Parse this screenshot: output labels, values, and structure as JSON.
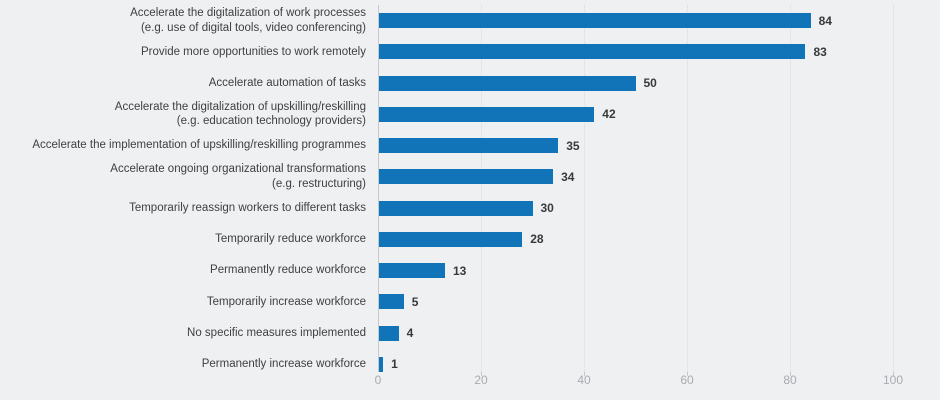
{
  "chart_data": {
    "type": "bar",
    "orientation": "horizontal",
    "title": "",
    "categories": [
      "Accelerate the digitalization of work processes\n(e.g. use of digital tools, video conferencing)",
      "Provide more opportunities to work remotely",
      "Accelerate automation of tasks",
      "Accelerate the digitalization of upskilling/reskilling\n(e.g. education technology providers)",
      "Accelerate the implementation of upskilling/reskilling programmes",
      "Accelerate ongoing organizational transformations\n(e.g. restructuring)",
      "Temporarily reassign workers to different tasks",
      "Temporarily reduce workforce",
      "Permanently reduce workforce",
      "Temporarily increase workforce",
      "No specific measures implemented",
      "Permanently increase workforce"
    ],
    "values": [
      84,
      83,
      50,
      42,
      35,
      34,
      30,
      28,
      13,
      5,
      4,
      1
    ],
    "value_labels_shown": true,
    "xlim": [
      0,
      100
    ],
    "x_ticks": [
      0,
      20,
      40,
      60,
      80,
      100
    ],
    "grid": "vertical-dotted",
    "legend": "none",
    "colors": {
      "bar": "#1173b8",
      "background": "#eef0f2",
      "category_text": "#3e4043",
      "value_text": "#38393b",
      "axis_line": "#c6cace",
      "gridline": "#d7dadd",
      "tick_text": "#a8acb0"
    }
  }
}
